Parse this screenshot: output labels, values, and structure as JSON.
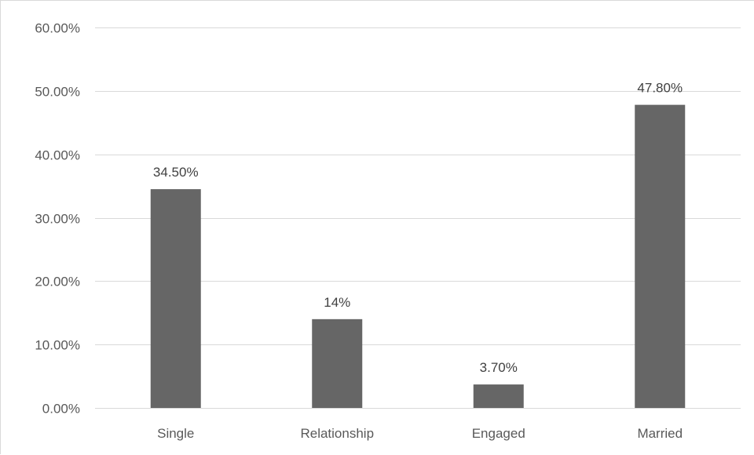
{
  "chart_data": {
    "type": "bar",
    "categories": [
      "Single",
      "Relationship",
      "Engaged",
      "Married"
    ],
    "values": [
      34.5,
      14,
      3.7,
      47.8
    ],
    "data_labels": [
      "34.50%",
      "14%",
      "3.70%",
      "47.80%"
    ],
    "y_ticks": [
      {
        "value": 0,
        "label": "0.00%"
      },
      {
        "value": 10,
        "label": "10.00%"
      },
      {
        "value": 20,
        "label": "20.00%"
      },
      {
        "value": 30,
        "label": "30.00%"
      },
      {
        "value": 40,
        "label": "40.00%"
      },
      {
        "value": 50,
        "label": "50.00%"
      },
      {
        "value": 60,
        "label": "60.00%"
      }
    ],
    "ylim": [
      0,
      60
    ],
    "title": "",
    "xlabel": "",
    "ylabel": "",
    "grid": true,
    "bar_color": "#666666",
    "grid_color": "#d9d9d9"
  }
}
